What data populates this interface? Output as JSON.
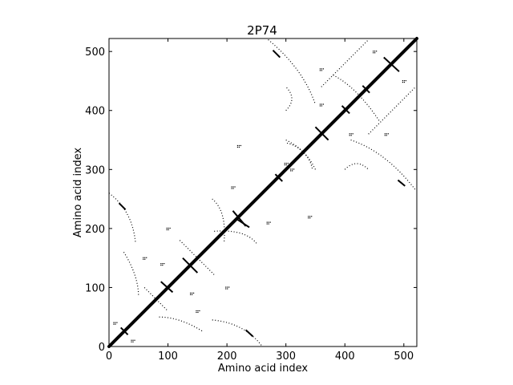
{
  "chart_data": {
    "type": "scatter",
    "title": "2P74",
    "xlabel": "Amino acid index",
    "ylabel": "Amino acid index",
    "xlim": [
      0,
      522
    ],
    "ylim": [
      0,
      522
    ],
    "xticks": [
      0,
      100,
      200,
      300,
      400,
      500
    ],
    "yticks": [
      0,
      100,
      200,
      300,
      400,
      500
    ],
    "grid": false,
    "legend": "none",
    "marker_color": "#000000",
    "diagonal": {
      "from": 0,
      "to": 522
    },
    "segments": [
      {
        "x1": 20,
        "y1": 32,
        "x2": 32,
        "y2": 20
      },
      {
        "x1": 210,
        "y1": 230,
        "x2": 232,
        "y2": 204
      },
      {
        "x1": 218,
        "y1": 215,
        "x2": 238,
        "y2": 202
      },
      {
        "x1": 282,
        "y1": 292,
        "x2": 294,
        "y2": 280
      },
      {
        "x1": 466,
        "y1": 490,
        "x2": 492,
        "y2": 466
      },
      {
        "x1": 17,
        "y1": 243,
        "x2": 28,
        "y2": 232
      },
      {
        "x1": 232,
        "y1": 28,
        "x2": 244,
        "y2": 17
      },
      {
        "x1": 278,
        "y1": 502,
        "x2": 290,
        "y2": 490
      },
      {
        "x1": 490,
        "y1": 282,
        "x2": 502,
        "y2": 272
      },
      {
        "x1": 88,
        "y1": 110,
        "x2": 108,
        "y2": 92
      },
      {
        "x1": 125,
        "y1": 150,
        "x2": 150,
        "y2": 125
      },
      {
        "x1": 350,
        "y1": 372,
        "x2": 372,
        "y2": 350
      },
      {
        "x1": 395,
        "y1": 408,
        "x2": 408,
        "y2": 395
      },
      {
        "x1": 430,
        "y1": 442,
        "x2": 442,
        "y2": 430
      }
    ],
    "arcs": [
      {
        "x1": 270,
        "y1": 520,
        "cx": 330,
        "cy": 470,
        "x2": 350,
        "y2": 410
      },
      {
        "x1": 410,
        "y1": 350,
        "cx": 470,
        "cy": 330,
        "x2": 520,
        "y2": 265
      },
      {
        "x1": 0,
        "y1": 260,
        "cx": 40,
        "cy": 230,
        "x2": 45,
        "y2": 175
      },
      {
        "x1": 175,
        "y1": 45,
        "cx": 230,
        "cy": 40,
        "x2": 260,
        "y2": 0
      },
      {
        "x1": 25,
        "y1": 160,
        "cx": 50,
        "cy": 120,
        "x2": 50,
        "y2": 85
      },
      {
        "x1": 85,
        "y1": 50,
        "cx": 120,
        "cy": 50,
        "x2": 160,
        "y2": 25
      },
      {
        "x1": 175,
        "y1": 250,
        "cx": 200,
        "cy": 230,
        "x2": 195,
        "y2": 175
      },
      {
        "x1": 250,
        "y1": 175,
        "cx": 230,
        "cy": 200,
        "x2": 175,
        "y2": 195
      },
      {
        "x1": 360,
        "y1": 440,
        "cx": 400,
        "cy": 480,
        "x2": 440,
        "y2": 520
      },
      {
        "x1": 440,
        "y1": 360,
        "cx": 480,
        "cy": 400,
        "x2": 520,
        "y2": 440
      },
      {
        "x1": 300,
        "y1": 350,
        "cx": 340,
        "cy": 330,
        "x2": 345,
        "y2": 300
      },
      {
        "x1": 350,
        "y1": 300,
        "cx": 330,
        "cy": 340,
        "x2": 300,
        "y2": 345
      },
      {
        "x1": 60,
        "y1": 100,
        "cx": 80,
        "cy": 80,
        "x2": 100,
        "y2": 60
      },
      {
        "x1": 120,
        "y1": 180,
        "cx": 150,
        "cy": 150,
        "x2": 180,
        "y2": 120
      },
      {
        "x1": 380,
        "y1": 460,
        "cx": 420,
        "cy": 440,
        "x2": 460,
        "y2": 380
      },
      {
        "x1": 400,
        "y1": 300,
        "cx": 420,
        "cy": 320,
        "x2": 440,
        "y2": 300
      },
      {
        "x1": 300,
        "y1": 400,
        "cx": 320,
        "cy": 420,
        "x2": 300,
        "y2": 440
      }
    ],
    "clusters": [
      {
        "x": 10,
        "y": 40
      },
      {
        "x": 40,
        "y": 10
      },
      {
        "x": 60,
        "y": 150
      },
      {
        "x": 150,
        "y": 60
      },
      {
        "x": 100,
        "y": 200
      },
      {
        "x": 200,
        "y": 100
      },
      {
        "x": 210,
        "y": 270
      },
      {
        "x": 270,
        "y": 210
      },
      {
        "x": 360,
        "y": 410
      },
      {
        "x": 410,
        "y": 360
      },
      {
        "x": 450,
        "y": 500
      },
      {
        "x": 500,
        "y": 450
      },
      {
        "x": 310,
        "y": 300
      },
      {
        "x": 300,
        "y": 310
      },
      {
        "x": 140,
        "y": 90
      },
      {
        "x": 90,
        "y": 140
      },
      {
        "x": 340,
        "y": 220
      },
      {
        "x": 220,
        "y": 340
      },
      {
        "x": 470,
        "y": 360
      },
      {
        "x": 360,
        "y": 470
      }
    ]
  }
}
